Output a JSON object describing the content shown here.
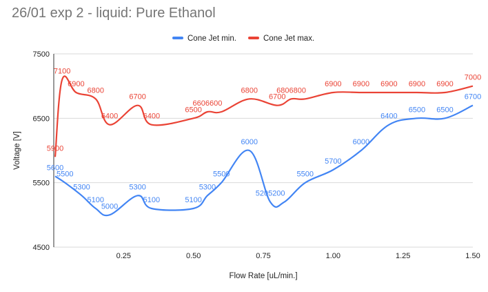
{
  "title": "26/01 exp 2 - liquid: Pure Ethanol",
  "chart_data": {
    "type": "line",
    "title": "26/01 exp 2 - liquid: Pure Ethanol",
    "xlabel": "Flow Rate [uL/min.]",
    "ylabel": "Voltage [V]",
    "xlim": [
      0,
      1.5
    ],
    "ylim": [
      4500,
      7500
    ],
    "x_ticks": [
      "0.25",
      "0.50",
      "0.75",
      "1.00",
      "1.25",
      "1.50"
    ],
    "y_ticks": [
      "4500",
      "5500",
      "6500",
      "7500"
    ],
    "x_tick_values": [
      0.25,
      0.5,
      0.75,
      1.0,
      1.25,
      1.5
    ],
    "y_tick_values": [
      4500,
      5500,
      6500,
      7500
    ],
    "grid": true,
    "legend_position": "top",
    "series": [
      {
        "name": "Cone Jet min.",
        "color": "#4285f4",
        "points": [
          [
            0.005,
            5600
          ],
          [
            0.04,
            5500
          ],
          [
            0.1,
            5300
          ],
          [
            0.15,
            5100
          ],
          [
            0.2,
            5000
          ],
          [
            0.3,
            5300
          ],
          [
            0.35,
            5100
          ],
          [
            0.5,
            5100
          ],
          [
            0.55,
            5300
          ],
          [
            0.6,
            5500
          ],
          [
            0.7,
            6000
          ],
          [
            0.775,
            5200
          ],
          [
            0.825,
            5200
          ],
          [
            0.9,
            5500
          ],
          [
            1.0,
            5700
          ],
          [
            1.1,
            6000
          ],
          [
            1.2,
            6400
          ],
          [
            1.3,
            6500
          ],
          [
            1.4,
            6500
          ],
          [
            1.5,
            6700
          ]
        ],
        "labels": [
          "5600",
          "5500",
          "5300",
          "5100",
          "5000",
          "5300",
          "5100",
          "5100",
          "5300",
          "5500",
          "6000",
          "5205200",
          "",
          "5500",
          "5700",
          "6000",
          "6400",
          "6500",
          "6500",
          "6700"
        ]
      },
      {
        "name": "Cone Jet max.",
        "color": "#ea4335",
        "points": [
          [
            0.005,
            5900
          ],
          [
            0.03,
            7100
          ],
          [
            0.08,
            6900
          ],
          [
            0.15,
            6800
          ],
          [
            0.2,
            6400
          ],
          [
            0.3,
            6700
          ],
          [
            0.35,
            6400
          ],
          [
            0.5,
            6500
          ],
          [
            0.55,
            6600
          ],
          [
            0.6,
            6600
          ],
          [
            0.7,
            6800
          ],
          [
            0.8,
            6700
          ],
          [
            0.85,
            6800
          ],
          [
            0.9,
            6800
          ],
          [
            1.0,
            6900
          ],
          [
            1.1,
            6900
          ],
          [
            1.2,
            6900
          ],
          [
            1.3,
            6900
          ],
          [
            1.4,
            6900
          ],
          [
            1.5,
            7000
          ]
        ],
        "labels": [
          "5900",
          "7100",
          "6900",
          "6800",
          "6400",
          "6700",
          "6400",
          "6500",
          "6606600",
          "",
          "6800",
          "6700",
          "6806800",
          "",
          "6900",
          "6900",
          "6900",
          "6900",
          "6900",
          "7000"
        ]
      }
    ]
  }
}
